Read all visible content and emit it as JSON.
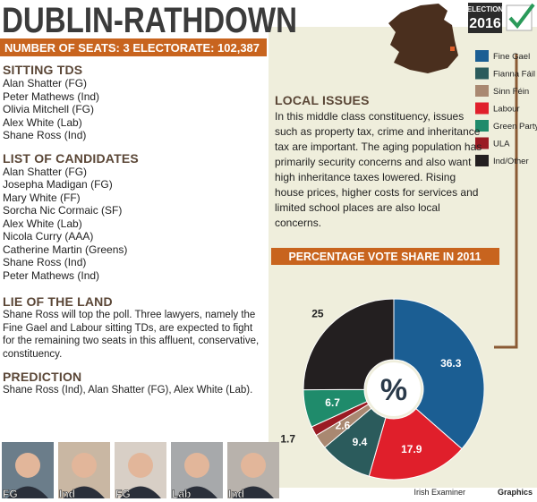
{
  "header": {
    "title": "DUBLIN-RATHDOWN",
    "logo_top": "ELECTION",
    "logo_year": "2016",
    "seats_line": "NUMBER OF SEATS: 3 ELECTORATE: 102,387"
  },
  "sections": [
    {
      "heading": "SITTING TDS",
      "lines": [
        "Alan Shatter (FG)",
        "Peter Mathews (Ind)",
        "Olivia Mitchell (FG)",
        "Alex White (Lab)",
        "Shane Ross (Ind)"
      ]
    },
    {
      "heading": "LIST OF CANDIDATES",
      "lines": [
        "Alan Shatter (FG)",
        "Josepha Madigan (FG)",
        "Mary White (FF)",
        "Sorcha Nic Cormaic (SF)",
        "Alex White (Lab)",
        "Nicola Curry (AAA)",
        "Catherine Martin (Greens)",
        "Shane Ross (Ind)",
        "Peter Mathews (Ind)"
      ]
    },
    {
      "heading": "LIE OF THE LAND",
      "text": "Shane Ross will top the poll. Three lawyers, namely the Fine Gael and Labour sitting TDs, are expected to fight for the remaining two seats in this affluent, conservative, constituency."
    },
    {
      "heading": "PREDICTION",
      "text": "Shane Ross (Ind), Alan Shatter (FG), Alex White (Lab)."
    }
  ],
  "local_issues": {
    "heading": "LOCAL ISSUES",
    "text": "In this middle class constituency, issues such as property tax, crime and inheritance tax are important. The aging population has primarily security concerns and also want high inheritance taxes lowered. Rising house prices, higher costs for services and limited school places are also local concerns."
  },
  "photos": [
    {
      "label": "FG"
    },
    {
      "label": "Ind"
    },
    {
      "label": "FG"
    },
    {
      "label": "Lab"
    },
    {
      "label": "Ind"
    }
  ],
  "credit": {
    "source": "Irish Examiner",
    "suffix": "Graphics"
  },
  "chart_data": {
    "type": "pie",
    "title": "PERCENTAGE VOTE SHARE IN 2011",
    "center_label": "%",
    "categories": [
      "Fine Gael",
      "Fianna Fáil",
      "Sinn Féin",
      "Labour",
      "Green Party",
      "ULA",
      "Ind/Other"
    ],
    "values": [
      36.3,
      9.4,
      2.6,
      17.9,
      6.7,
      1.7,
      25
    ],
    "colors": [
      "#1b5e93",
      "#2b5b5c",
      "#a98871",
      "#e01f2b",
      "#1f8b6b",
      "#9a1b23",
      "#231f20"
    ]
  }
}
